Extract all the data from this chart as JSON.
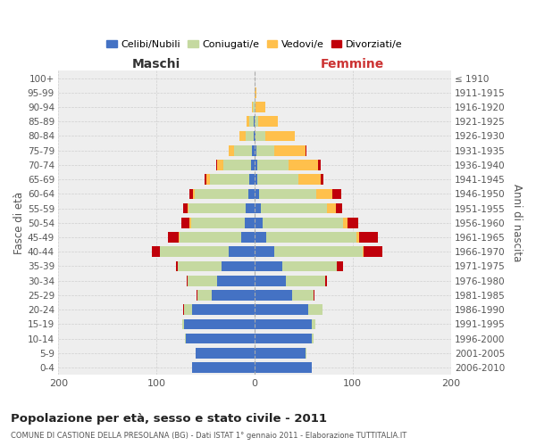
{
  "age_groups": [
    "100+",
    "95-99",
    "90-94",
    "85-89",
    "80-84",
    "75-79",
    "70-74",
    "65-69",
    "60-64",
    "55-59",
    "50-54",
    "45-49",
    "40-44",
    "35-39",
    "30-34",
    "25-29",
    "20-24",
    "15-19",
    "10-14",
    "5-9",
    "0-4"
  ],
  "birth_years": [
    "≤ 1910",
    "1911-1915",
    "1916-1920",
    "1921-1925",
    "1926-1930",
    "1931-1935",
    "1936-1940",
    "1941-1945",
    "1946-1950",
    "1951-1955",
    "1956-1960",
    "1961-1965",
    "1966-1970",
    "1971-1975",
    "1976-1980",
    "1981-1985",
    "1986-1990",
    "1991-1995",
    "1996-2000",
    "2001-2005",
    "2006-2010"
  ],
  "maschi": {
    "celibi": [
      0,
      0,
      0,
      1,
      1,
      3,
      4,
      5,
      6,
      9,
      10,
      14,
      26,
      34,
      38,
      44,
      64,
      72,
      70,
      60,
      64
    ],
    "coniugati": [
      0,
      0,
      2,
      4,
      8,
      18,
      28,
      40,
      55,
      58,
      55,
      62,
      70,
      44,
      30,
      14,
      8,
      2,
      1,
      0,
      0
    ],
    "vedovi": [
      0,
      0,
      1,
      3,
      6,
      5,
      6,
      4,
      2,
      1,
      1,
      1,
      0,
      0,
      0,
      0,
      0,
      0,
      0,
      0,
      0
    ],
    "divorziati": [
      0,
      0,
      0,
      0,
      0,
      0,
      1,
      2,
      3,
      5,
      9,
      11,
      9,
      2,
      1,
      1,
      1,
      0,
      0,
      0,
      0
    ]
  },
  "femmine": {
    "nubili": [
      0,
      0,
      0,
      0,
      1,
      2,
      3,
      3,
      5,
      6,
      8,
      12,
      20,
      28,
      32,
      38,
      55,
      58,
      58,
      52,
      58
    ],
    "coniugate": [
      0,
      0,
      1,
      4,
      10,
      18,
      32,
      42,
      58,
      68,
      82,
      92,
      90,
      56,
      40,
      22,
      14,
      4,
      2,
      1,
      0
    ],
    "vedove": [
      0,
      2,
      10,
      20,
      30,
      32,
      30,
      22,
      16,
      9,
      5,
      3,
      1,
      0,
      0,
      0,
      0,
      0,
      0,
      0,
      0
    ],
    "divorziate": [
      0,
      0,
      0,
      0,
      0,
      1,
      2,
      3,
      9,
      6,
      11,
      19,
      19,
      6,
      2,
      1,
      0,
      0,
      0,
      0,
      0
    ]
  },
  "colors": {
    "celibi_nubili": "#4472c4",
    "coniugati": "#c5d9a0",
    "vedovi": "#ffc04c",
    "divorziati": "#c0000b"
  },
  "title": "Popolazione per età, sesso e stato civile - 2011",
  "subtitle": "COMUNE DI CASTIONE DELLA PRESOLANA (BG) - Dati ISTAT 1° gennaio 2011 - Elaborazione TUTTITALIA.IT",
  "xlabel_left": "Maschi",
  "xlabel_right": "Femmine",
  "ylabel_left": "Fasce di età",
  "ylabel_right": "Anni di nascita",
  "xlim": 200,
  "bg_color": "#ffffff",
  "grid_color": "#cccccc",
  "plot_bg": "#eeeeee"
}
